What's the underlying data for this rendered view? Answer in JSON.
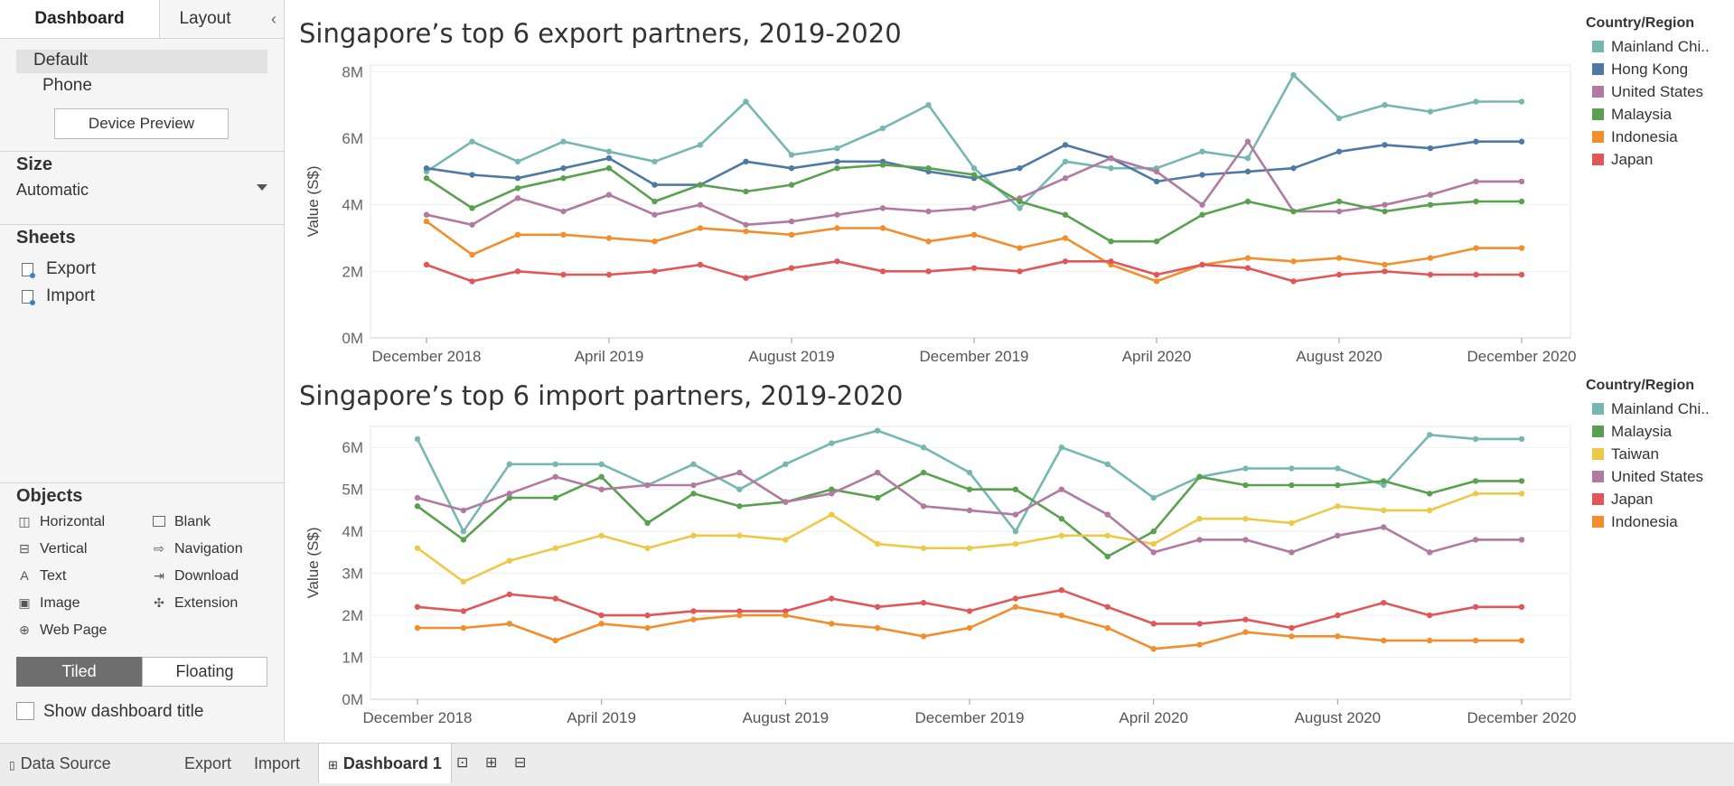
{
  "left": {
    "tabs": [
      "Dashboard",
      "Layout"
    ],
    "collapse": "‹",
    "device_items": [
      "Default",
      "Phone"
    ],
    "device_preview": "Device Preview",
    "size_title": "Size",
    "size_value": "Automatic",
    "sheets_title": "Sheets",
    "sheets": [
      "Export",
      "Import"
    ],
    "objects_title": "Objects",
    "objects": [
      {
        "label": "Horizontal",
        "icon": "horizontal-icon"
      },
      {
        "label": "Blank",
        "icon": "blank-icon"
      },
      {
        "label": "Vertical",
        "icon": "vertical-icon"
      },
      {
        "label": "Navigation",
        "icon": "navigation-icon"
      },
      {
        "label": "Text",
        "icon": "text-icon"
      },
      {
        "label": "Download",
        "icon": "download-icon"
      },
      {
        "label": "Image",
        "icon": "image-icon"
      },
      {
        "label": "Extension",
        "icon": "extension-icon"
      },
      {
        "label": "Web Page",
        "icon": "web-page-icon"
      }
    ],
    "tiled": "Tiled",
    "floating": "Floating",
    "show_title": "Show dashboard title"
  },
  "bottom_tabs": [
    "Data Source",
    "Export",
    "Import",
    "Dashboard 1"
  ],
  "chart_data": [
    {
      "type": "line",
      "title": "Singapore’s top 6 export partners, 2019-2020",
      "ylabel": "Value (S$)",
      "xlabel": "",
      "x_tick_labels": [
        "December 2018",
        "April 2019",
        "August 2019",
        "December 2019",
        "April 2020",
        "August 2020",
        "December 2020"
      ],
      "y_tick_labels": [
        "0M",
        "2M",
        "4M",
        "6M",
        "8M"
      ],
      "ylim": [
        0,
        8.2
      ],
      "x": [
        "2018-12",
        "2019-01",
        "2019-02",
        "2019-03",
        "2019-04",
        "2019-05",
        "2019-06",
        "2019-07",
        "2019-08",
        "2019-09",
        "2019-10",
        "2019-11",
        "2019-12",
        "2020-01",
        "2020-02",
        "2020-03",
        "2020-04",
        "2020-05",
        "2020-06",
        "2020-07",
        "2020-08",
        "2020-09",
        "2020-10",
        "2020-11",
        "2020-12"
      ],
      "legend_title": "Country/Region",
      "legend_position": "right",
      "grid": true,
      "series": [
        {
          "name": "Mainland Chi..",
          "color": "#76b7b2",
          "values": [
            5.0,
            5.9,
            5.3,
            5.9,
            5.6,
            5.3,
            5.8,
            7.1,
            5.5,
            5.7,
            6.3,
            7.0,
            5.1,
            3.9,
            5.3,
            5.1,
            5.1,
            5.6,
            5.4,
            7.9,
            6.6,
            7.0,
            6.8,
            7.1,
            7.1
          ]
        },
        {
          "name": "Hong Kong",
          "color": "#4e79a7",
          "values": [
            5.1,
            4.9,
            4.8,
            5.1,
            5.4,
            4.6,
            4.6,
            5.3,
            5.1,
            5.3,
            5.3,
            5.0,
            4.8,
            5.1,
            5.8,
            5.4,
            4.7,
            4.9,
            5.0,
            5.1,
            5.6,
            5.8,
            5.7,
            5.9,
            5.9
          ]
        },
        {
          "name": "United States",
          "color": "#b07aa1",
          "values": [
            3.7,
            3.4,
            4.2,
            3.8,
            4.3,
            3.7,
            4.0,
            3.4,
            3.5,
            3.7,
            3.9,
            3.8,
            3.9,
            4.2,
            4.8,
            5.4,
            5.0,
            4.0,
            5.9,
            3.8,
            3.8,
            4.0,
            4.3,
            4.7,
            4.7
          ]
        },
        {
          "name": "Malaysia",
          "color": "#59a14f",
          "values": [
            4.8,
            3.9,
            4.5,
            4.8,
            5.1,
            4.1,
            4.6,
            4.4,
            4.6,
            5.1,
            5.2,
            5.1,
            4.9,
            4.1,
            3.7,
            2.9,
            2.9,
            3.7,
            4.1,
            3.8,
            4.1,
            3.8,
            4.0,
            4.1,
            4.1
          ]
        },
        {
          "name": "Indonesia",
          "color": "#f28e2b",
          "values": [
            3.5,
            2.5,
            3.1,
            3.1,
            3.0,
            2.9,
            3.3,
            3.2,
            3.1,
            3.3,
            3.3,
            2.9,
            3.1,
            2.7,
            3.0,
            2.2,
            1.7,
            2.2,
            2.4,
            2.3,
            2.4,
            2.2,
            2.4,
            2.7,
            2.7
          ]
        },
        {
          "name": "Japan",
          "color": "#e15759",
          "values": [
            2.2,
            1.7,
            2.0,
            1.9,
            1.9,
            2.0,
            2.2,
            1.8,
            2.1,
            2.3,
            2.0,
            2.0,
            2.1,
            2.0,
            2.3,
            2.3,
            1.9,
            2.2,
            2.1,
            1.7,
            1.9,
            2.0,
            1.9,
            1.9,
            1.9
          ]
        }
      ]
    },
    {
      "type": "line",
      "title": "Singapore’s top 6 import partners, 2019-2020",
      "ylabel": "Value (S$)",
      "xlabel": "",
      "x_tick_labels": [
        "December 2018",
        "April 2019",
        "August 2019",
        "December 2019",
        "April 2020",
        "August 2020",
        "December 2020"
      ],
      "y_tick_labels": [
        "0M",
        "1M",
        "2M",
        "3M",
        "4M",
        "5M",
        "6M"
      ],
      "ylim": [
        0,
        6.5
      ],
      "x": [
        "2018-12",
        "2019-01",
        "2019-02",
        "2019-03",
        "2019-04",
        "2019-05",
        "2019-06",
        "2019-07",
        "2019-08",
        "2019-09",
        "2019-10",
        "2019-11",
        "2019-12",
        "2020-01",
        "2020-02",
        "2020-03",
        "2020-04",
        "2020-05",
        "2020-06",
        "2020-07",
        "2020-08",
        "2020-09",
        "2020-10",
        "2020-11",
        "2020-12"
      ],
      "legend_title": "Country/Region",
      "legend_position": "right",
      "grid": true,
      "series": [
        {
          "name": "Mainland Chi..",
          "color": "#76b7b2",
          "values": [
            6.2,
            4.0,
            5.6,
            5.6,
            5.6,
            5.1,
            5.6,
            5.0,
            5.6,
            6.1,
            6.4,
            6.0,
            5.4,
            4.0,
            6.0,
            5.6,
            4.8,
            5.3,
            5.5,
            5.5,
            5.5,
            5.1,
            6.3,
            6.2,
            6.2
          ]
        },
        {
          "name": "Malaysia",
          "color": "#59a14f",
          "values": [
            4.6,
            3.8,
            4.8,
            4.8,
            5.3,
            4.2,
            4.9,
            4.6,
            4.7,
            5.0,
            4.8,
            5.4,
            5.0,
            5.0,
            4.3,
            3.4,
            4.0,
            5.3,
            5.1,
            5.1,
            5.1,
            5.2,
            4.9,
            5.2,
            5.2
          ]
        },
        {
          "name": "Taiwan",
          "color": "#edc948",
          "values": [
            3.6,
            2.8,
            3.3,
            3.6,
            3.9,
            3.6,
            3.9,
            3.9,
            3.8,
            4.4,
            3.7,
            3.6,
            3.6,
            3.7,
            3.9,
            3.9,
            3.7,
            4.3,
            4.3,
            4.2,
            4.6,
            4.5,
            4.5,
            4.9,
            4.9
          ]
        },
        {
          "name": "United States",
          "color": "#b07aa1",
          "values": [
            4.8,
            4.5,
            4.9,
            5.3,
            5.0,
            5.1,
            5.1,
            5.4,
            4.7,
            4.9,
            5.4,
            4.6,
            4.5,
            4.4,
            5.0,
            4.4,
            3.5,
            3.8,
            3.8,
            3.5,
            3.9,
            4.1,
            3.5,
            3.8,
            3.8
          ]
        },
        {
          "name": "Japan",
          "color": "#e15759",
          "values": [
            2.2,
            2.1,
            2.5,
            2.4,
            2.0,
            2.0,
            2.1,
            2.1,
            2.1,
            2.4,
            2.2,
            2.3,
            2.1,
            2.4,
            2.6,
            2.2,
            1.8,
            1.8,
            1.9,
            1.7,
            2.0,
            2.3,
            2.0,
            2.2,
            2.2
          ]
        },
        {
          "name": "Indonesia",
          "color": "#f28e2b",
          "values": [
            1.7,
            1.7,
            1.8,
            1.4,
            1.8,
            1.7,
            1.9,
            2.0,
            2.0,
            1.8,
            1.7,
            1.5,
            1.7,
            2.2,
            2.0,
            1.7,
            1.2,
            1.3,
            1.6,
            1.5,
            1.5,
            1.4,
            1.4,
            1.4,
            1.4
          ]
        }
      ]
    }
  ]
}
